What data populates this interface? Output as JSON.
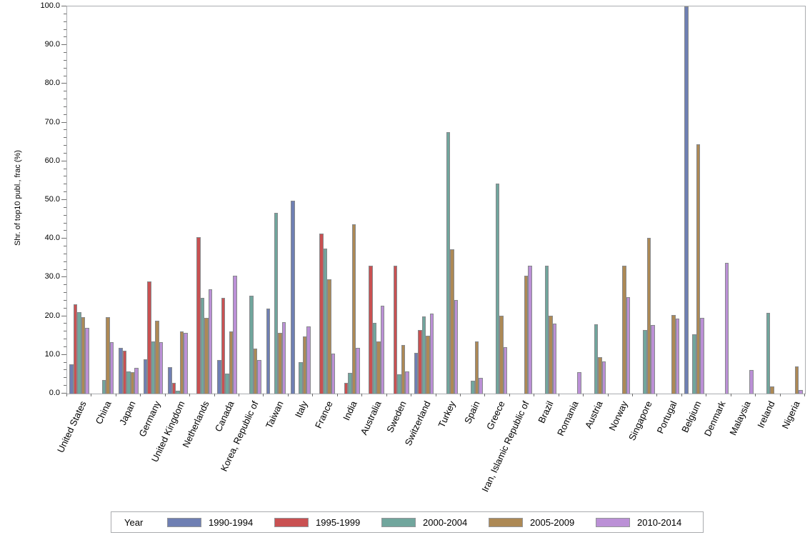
{
  "colors": {
    "background": "#ffffff",
    "bar_border": "#87898c",
    "axis_frame": "#abadb0",
    "tick": "#6e6e6e",
    "text": "#000000"
  },
  "chart_data": {
    "type": "bar",
    "title": "",
    "xlabel": "",
    "ylabel": "Shr. of top10 publ., frac (%)",
    "ylim": [
      0,
      100
    ],
    "y_major_step": 10,
    "y_minor_step": 2,
    "y_tick_format": "one_decimal",
    "grid": false,
    "legend_title": "Year",
    "legend_position": "bottom",
    "categories": [
      "United States",
      "China",
      "Japan",
      "Germany",
      "United Kingdom",
      "Netherlands",
      "Canada",
      "Korea, Republic of",
      "Taiwan",
      "Italy",
      "France",
      "India",
      "Australia",
      "Sweden",
      "Switzerland",
      "Turkey",
      "Spain",
      "Greece",
      "Iran, Islamic Republic of",
      "Brazil",
      "Romania",
      "Austria",
      "Norway",
      "Singapore",
      "Portugal",
      "Belgium",
      "Denmark",
      "Malaysia",
      "Ireland",
      "Nigeria"
    ],
    "series": [
      {
        "name": "1990-1994",
        "color": "#6f7fb3",
        "values": [
          7.5,
          0,
          11.9,
          8.8,
          6.8,
          0,
          8.7,
          0,
          21.9,
          49.8,
          0,
          0,
          0,
          0,
          10.6,
          0,
          0,
          0,
          0,
          0,
          0,
          0,
          0,
          0,
          0,
          100,
          0,
          0,
          0,
          0
        ]
      },
      {
        "name": "1995-1999",
        "color": "#c95152",
        "values": [
          23,
          0,
          11,
          28.9,
          2.7,
          40.5,
          24.8,
          0,
          0,
          0,
          41.4,
          2.8,
          33,
          33,
          16.4,
          0,
          0,
          0,
          0,
          0,
          0,
          0,
          0,
          0,
          0,
          0,
          0,
          0,
          0,
          0
        ]
      },
      {
        "name": "2000-2004",
        "color": "#71a69d",
        "values": [
          21,
          3.5,
          5.8,
          13.4,
          0.8,
          24.7,
          5.1,
          25.2,
          46.7,
          8.1,
          37.4,
          5.4,
          18.3,
          4.9,
          20,
          67.5,
          3.3,
          54.3,
          0,
          33.1,
          0,
          17.9,
          0,
          16.4,
          0,
          15.4,
          0,
          0,
          20.9,
          0
        ]
      },
      {
        "name": "2005-2009",
        "color": "#ad8955",
        "values": [
          19.8,
          19.8,
          5.5,
          18.9,
          16.1,
          19.5,
          16.1,
          11.7,
          15.6,
          14.8,
          29.5,
          43.7,
          13.4,
          12.5,
          14.9,
          37.3,
          13.4,
          20.2,
          30.4,
          20.2,
          0,
          9.4,
          33,
          40.3,
          20.3,
          64.4,
          0,
          0,
          1.8,
          7
        ]
      },
      {
        "name": "2010-2014",
        "color": "#bb90d6",
        "values": [
          17,
          13.3,
          6.7,
          13.3,
          15.7,
          26.9,
          30.5,
          8.6,
          18.4,
          17.4,
          10.4,
          11.8,
          22.7,
          5.8,
          20.7,
          24.2,
          4,
          12,
          33,
          18.1,
          5.6,
          8.3,
          25,
          17.7,
          19.3,
          19.5,
          33.8,
          6,
          0,
          1
        ]
      }
    ]
  }
}
